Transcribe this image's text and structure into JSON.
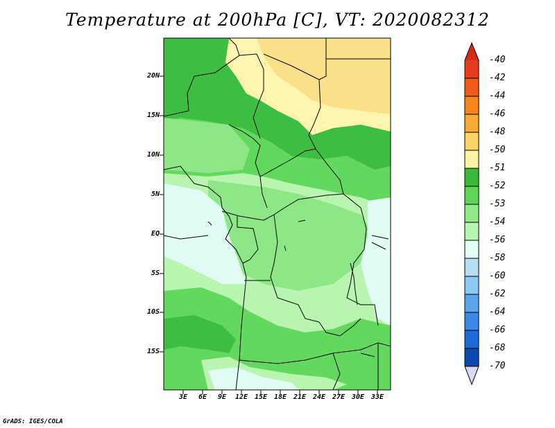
{
  "title": "Temperature at 200hPa [C], VT: 2020082312",
  "footer": "GrADS: IGES/COLA",
  "map": {
    "region": "Central Africa",
    "lon_range": [
      0,
      35
    ],
    "lat_range": [
      -20,
      25
    ],
    "y_axis_labels": [
      "20N",
      "15N",
      "10N",
      "5N",
      "EQ",
      "5S",
      "10S",
      "15S"
    ],
    "x_axis_labels": [
      "3E",
      "6E",
      "9E",
      "12E",
      "15E",
      "18E",
      "21E",
      "24E",
      "27E",
      "30E",
      "33E"
    ]
  },
  "colorbar": {
    "labels": [
      "-40",
      "-42",
      "-44",
      "-46",
      "-48",
      "-50",
      "-51",
      "-52",
      "-53",
      "-54",
      "-56",
      "-58",
      "-60",
      "-62",
      "-64",
      "-66",
      "-68",
      "-70"
    ],
    "colors": {
      "top_arrow": "#d62a1a",
      "steps": [
        "#e63a1e",
        "#f05a1a",
        "#f5861e",
        "#f9ac34",
        "#fbd266",
        "#fef2a4",
        "#3ab93a",
        "#5ed65a",
        "#92ea8a",
        "#b8f5b0",
        "#e2fdf6",
        "#b5def5",
        "#8cc8f4",
        "#5ca6ee",
        "#3b88e6",
        "#1d6ad8",
        "#0c48b0"
      ],
      "bottom_arrow": "#d8d8f2"
    }
  },
  "field_colors": {
    "warm_yellow": "#fae189",
    "pale_yellow": "#fef5b0",
    "dark_green": "#3dbd41",
    "mid_green": "#63d85f",
    "light_green": "#8ee787",
    "pale_green": "#b9f5b1",
    "very_pale": "#e0fcf4"
  }
}
